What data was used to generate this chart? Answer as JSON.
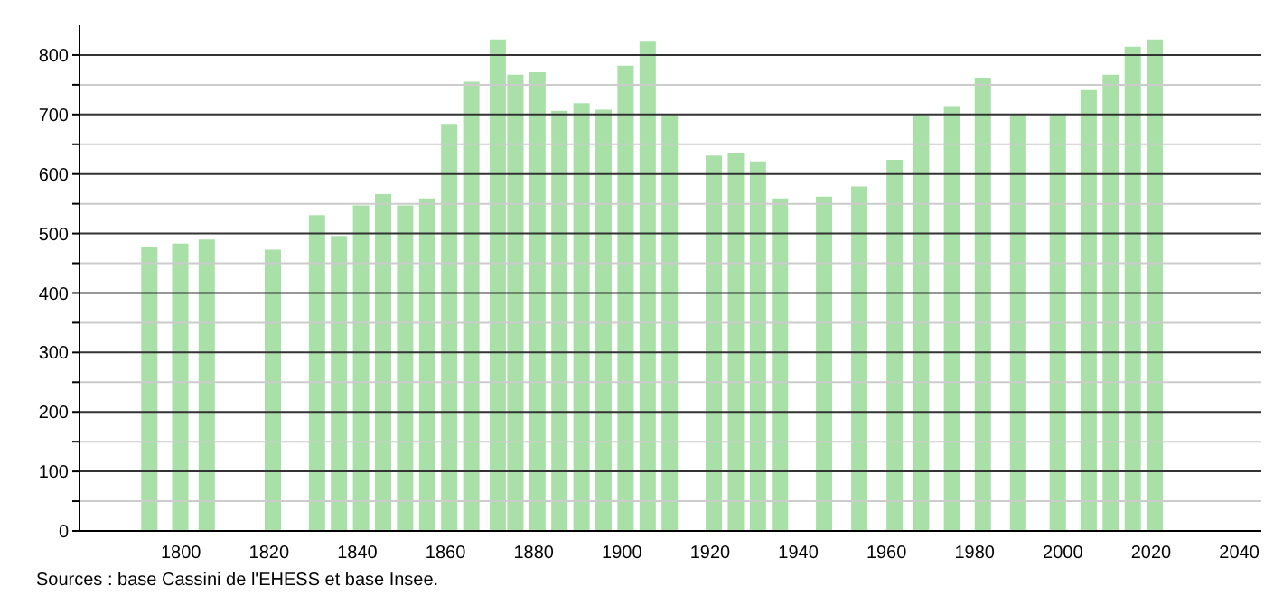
{
  "chart_data": {
    "type": "bar",
    "x": [
      1793,
      1800,
      1806,
      1821,
      1831,
      1836,
      1841,
      1846,
      1851,
      1856,
      1861,
      1866,
      1872,
      1876,
      1881,
      1886,
      1891,
      1896,
      1901,
      1906,
      1911,
      1921,
      1926,
      1931,
      1936,
      1946,
      1954,
      1962,
      1968,
      1975,
      1982,
      1990,
      1999,
      2006,
      2011,
      2016,
      2021
    ],
    "values": [
      478,
      483,
      490,
      473,
      531,
      496,
      547,
      566,
      547,
      559,
      684,
      755,
      826,
      767,
      771,
      706,
      719,
      708,
      782,
      824,
      699,
      631,
      636,
      621,
      559,
      562,
      579,
      624,
      699,
      714,
      762,
      699,
      699,
      741,
      767,
      814,
      826
    ],
    "color": "#a8e0a8",
    "xlim": [
      1777,
      2045
    ],
    "xticks": [
      1800,
      1820,
      1840,
      1860,
      1880,
      1900,
      1920,
      1940,
      1960,
      1980,
      2000,
      2020,
      2040
    ],
    "ylim": [
      0,
      850
    ],
    "yticks": [
      0,
      {
        "value": 50,
        "label": null
      },
      100,
      {
        "value": 150,
        "label": null
      },
      200,
      {
        "value": 250,
        "label": null
      },
      300,
      {
        "value": 350,
        "label": null
      },
      400,
      {
        "value": 450,
        "label": null
      },
      500,
      {
        "value": 550,
        "label": null
      },
      600,
      {
        "value": 650,
        "label": null
      },
      700,
      {
        "value": 750,
        "label": null
      },
      800
    ],
    "grid": "y",
    "annotations": [
      "Sources : base Cassini de l'EHESS et base Insee."
    ]
  }
}
